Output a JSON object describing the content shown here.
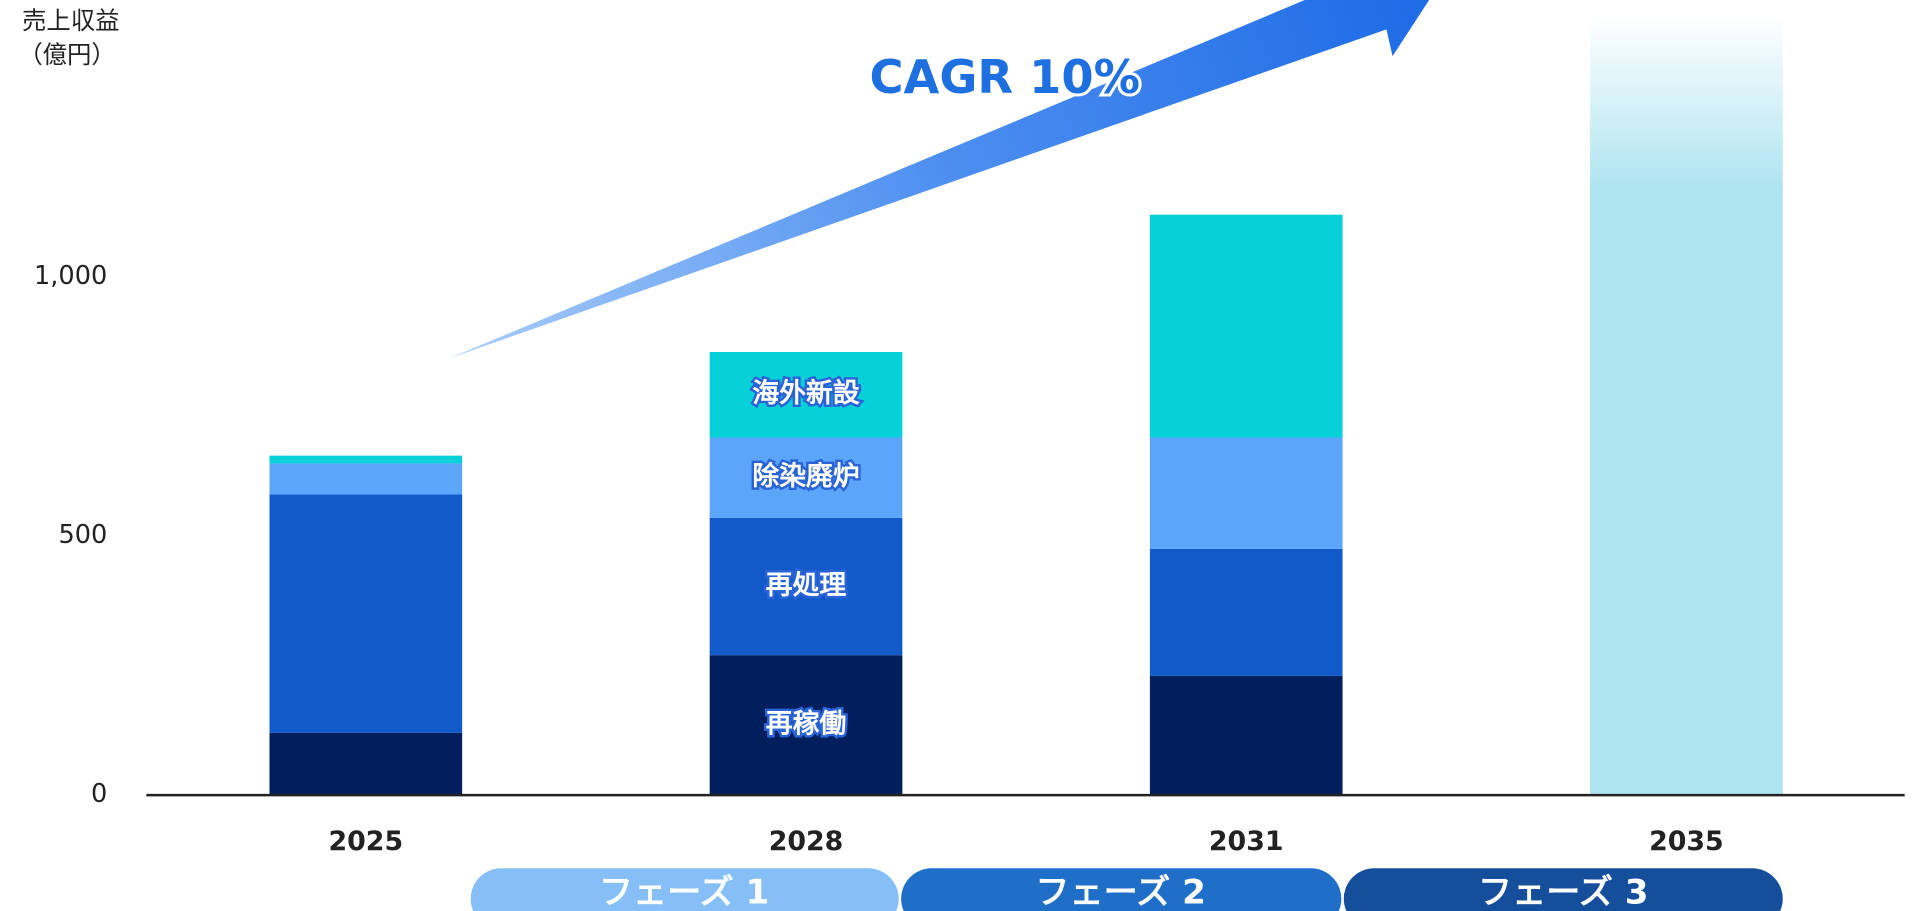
{
  "chart_data": {
    "type": "bar",
    "stacked": true,
    "ylabel": [
      "売上収益",
      "（億円）"
    ],
    "annotation": "CAGR 10%",
    "phases": [
      "フェーズ 1",
      "フェーズ 2",
      "フェーズ 3"
    ],
    "categories": [
      "2025",
      "2028",
      "2031",
      "2035"
    ],
    "series": [
      {
        "name": "再稼働",
        "color": "#001f5c",
        "values": [
          120,
          270,
          230,
          null
        ]
      },
      {
        "name": "再処理",
        "color": "#1259c9",
        "values": [
          460,
          265,
          245,
          null
        ]
      },
      {
        "name": "除染廃炉",
        "color": "#5ba6fb",
        "values": [
          60,
          155,
          215,
          null
        ]
      },
      {
        "name": "海外新設",
        "color": "#08d0d8",
        "values": [
          15,
          165,
          430,
          null
        ]
      },
      {
        "color": "#aee4f0",
        "values": [
          null,
          null,
          null,
          1500
        ]
      }
    ],
    "ylim": [
      0,
      1500
    ],
    "yticks": [
      0,
      500,
      {
        "value": 1000,
        "label": "1,000"
      }
    ],
    "grid": false
  }
}
